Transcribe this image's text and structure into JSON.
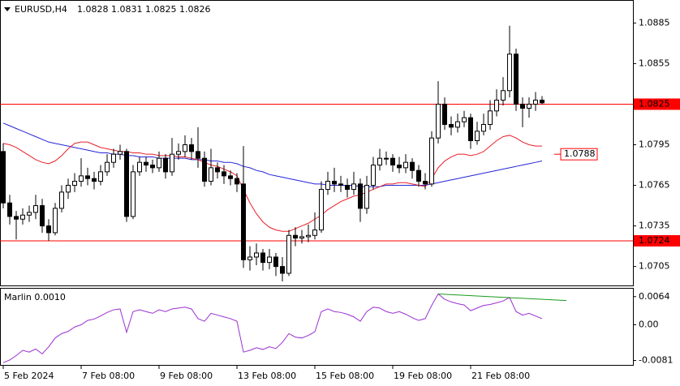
{
  "chart_data": [
    {
      "type": "candlestick",
      "title": "EURUSD,H4",
      "categories": [
        "5 Feb 2024",
        null,
        null,
        null,
        null,
        null,
        null,
        null,
        null,
        null,
        null,
        null,
        "7 Feb 08:00",
        null,
        null,
        null,
        null,
        null,
        null,
        null,
        null,
        null,
        null,
        null,
        "9 Feb 08:00",
        null,
        null,
        null,
        null,
        null,
        null,
        null,
        null,
        null,
        null,
        null,
        "13 Feb 08:00",
        null,
        null,
        null,
        null,
        null,
        null,
        null,
        null,
        null,
        null,
        null,
        "15 Feb 08:00",
        null,
        null,
        null,
        null,
        null,
        null,
        null,
        null,
        null,
        null,
        null,
        "19 Feb 08:00",
        null,
        null,
        null,
        null,
        null,
        null,
        null,
        null,
        null,
        null,
        null,
        "21 Feb 08:00",
        null,
        null,
        null,
        null,
        null,
        null,
        null,
        null,
        null,
        null,
        null
      ],
      "open": [
        1.079,
        1.0752,
        1.0742,
        1.074,
        1.0743,
        1.0745,
        1.075,
        1.0735,
        1.073,
        1.0748,
        1.076,
        1.0765,
        1.0768,
        1.0772,
        1.077,
        1.0768,
        1.0775,
        1.0782,
        1.0788,
        1.079,
        1.0742,
        1.0775,
        1.0782,
        1.078,
        1.0778,
        1.0785,
        1.0775,
        1.0788,
        1.079,
        1.0795,
        1.079,
        1.0785,
        1.0768,
        1.0778,
        1.0775,
        1.0772,
        1.077,
        1.0766,
        1.071,
        1.0712,
        1.0715,
        1.0708,
        1.0712,
        1.0705,
        1.07,
        1.0728,
        1.0726,
        1.0727,
        1.0728,
        1.0732,
        1.0762,
        1.0768,
        1.0766,
        1.0765,
        1.0762,
        1.0766,
        1.0748,
        1.0765,
        1.078,
        1.0785,
        1.0785,
        1.078,
        1.0778,
        1.0782,
        1.0776,
        1.0768,
        1.0766,
        1.08,
        1.0825,
        1.081,
        1.0808,
        1.0812,
        1.0815,
        1.0798,
        1.0805,
        1.081,
        1.082,
        1.0828,
        1.0835,
        1.0862,
        1.0825,
        1.0822,
        1.0825,
        1.0828
      ],
      "high": [
        1.0796,
        1.0758,
        1.0746,
        1.0748,
        1.075,
        1.0758,
        1.0755,
        1.074,
        1.0752,
        1.0765,
        1.077,
        1.0774,
        1.0785,
        1.0778,
        1.0775,
        1.078,
        1.0788,
        1.0792,
        1.0795,
        1.0792,
        1.078,
        1.0786,
        1.0786,
        1.0784,
        1.079,
        1.0788,
        1.08,
        1.0796,
        1.0802,
        1.08,
        1.0808,
        1.079,
        1.0792,
        1.0782,
        1.078,
        1.0776,
        1.0774,
        1.0794,
        1.072,
        1.0722,
        1.0718,
        1.0718,
        1.0715,
        1.0712,
        1.0732,
        1.0734,
        1.0732,
        1.0736,
        1.0745,
        1.0768,
        1.0775,
        1.0778,
        1.0772,
        1.077,
        1.0775,
        1.077,
        1.0772,
        1.0786,
        1.0792,
        1.079,
        1.0788,
        1.0786,
        1.0788,
        1.0785,
        1.078,
        1.0774,
        1.0805,
        1.0842,
        1.083,
        1.0816,
        1.0818,
        1.082,
        1.0818,
        1.0812,
        1.0818,
        1.0828,
        1.0836,
        1.0845,
        1.0883,
        1.0866,
        1.083,
        1.083,
        1.0834,
        1.0831
      ],
      "low": [
        1.0748,
        1.0736,
        1.0725,
        1.0736,
        1.0738,
        1.074,
        1.073,
        1.0724,
        1.0728,
        1.0745,
        1.0755,
        1.076,
        1.0764,
        1.0765,
        1.0762,
        1.0765,
        1.0772,
        1.0778,
        1.0784,
        1.0738,
        1.074,
        1.0772,
        1.0775,
        1.0774,
        1.0775,
        1.077,
        1.0772,
        1.0784,
        1.0786,
        1.0784,
        1.0778,
        1.0764,
        1.0765,
        1.077,
        1.0766,
        1.0765,
        1.076,
        1.0704,
        1.0702,
        1.0706,
        1.0702,
        1.0703,
        1.0698,
        1.0694,
        1.0698,
        1.072,
        1.0722,
        1.0723,
        1.0725,
        1.073,
        1.0758,
        1.076,
        1.076,
        1.0756,
        1.0758,
        1.0738,
        1.0744,
        1.0762,
        1.0776,
        1.078,
        1.0775,
        1.0774,
        1.0774,
        1.077,
        1.0764,
        1.0762,
        1.0764,
        1.0796,
        1.0806,
        1.0802,
        1.0804,
        1.0808,
        1.0792,
        1.0795,
        1.0802,
        1.0806,
        1.0816,
        1.0824,
        1.083,
        1.082,
        1.0808,
        1.0815,
        1.082,
        1.0825
      ],
      "close": [
        1.0752,
        1.0742,
        1.074,
        1.0743,
        1.0745,
        1.075,
        1.0735,
        1.073,
        1.0748,
        1.076,
        1.0765,
        1.0768,
        1.0772,
        1.077,
        1.0768,
        1.0775,
        1.0782,
        1.0788,
        1.079,
        1.0742,
        1.0775,
        1.0782,
        1.078,
        1.0778,
        1.0785,
        1.0775,
        1.0788,
        1.079,
        1.0795,
        1.079,
        1.0785,
        1.0768,
        1.0778,
        1.0775,
        1.0772,
        1.077,
        1.0766,
        1.071,
        1.0712,
        1.0715,
        1.0708,
        1.0712,
        1.0705,
        1.07,
        1.0728,
        1.0726,
        1.0727,
        1.0728,
        1.0732,
        1.0762,
        1.0768,
        1.0766,
        1.0765,
        1.0762,
        1.0766,
        1.0748,
        1.0765,
        1.078,
        1.0785,
        1.0785,
        1.078,
        1.0778,
        1.0782,
        1.0776,
        1.0768,
        1.0766,
        1.08,
        1.0825,
        1.081,
        1.0808,
        1.0812,
        1.0815,
        1.0798,
        1.0805,
        1.081,
        1.082,
        1.0828,
        1.0835,
        1.0862,
        1.0825,
        1.0822,
        1.0825,
        1.0828,
        1.0826
      ],
      "series": [
        {
          "color": "#2424d8",
          "values": [
            1.0811,
            1.0809,
            1.0807,
            1.0805,
            1.0803,
            1.0801,
            1.0799,
            1.0797,
            1.0796,
            1.0795,
            1.0794,
            1.0793,
            1.0792,
            1.0791,
            1.079,
            1.0789,
            1.0789,
            1.0788,
            1.0788,
            1.0787,
            1.0787,
            1.0786,
            1.0786,
            1.0786,
            1.0785,
            1.0785,
            1.0785,
            1.0785,
            1.0785,
            1.0784,
            1.0784,
            1.0784,
            1.0783,
            1.0783,
            1.0782,
            1.0782,
            1.0781,
            1.0779,
            1.0778,
            1.0776,
            1.0775,
            1.0773,
            1.0772,
            1.0771,
            1.077,
            1.0769,
            1.0768,
            1.0767,
            1.0766,
            1.0766,
            1.0765,
            1.0765,
            1.0765,
            1.0765,
            1.0765,
            1.0764,
            1.0764,
            1.0764,
            1.0764,
            1.0765,
            1.0765,
            1.0765,
            1.0765,
            1.0765,
            1.0765,
            1.0765,
            1.0766,
            1.0767,
            1.0768,
            1.0769,
            1.077,
            1.0771,
            1.0772,
            1.0773,
            1.0774,
            1.0775,
            1.0776,
            1.0777,
            1.0778,
            1.0779,
            1.078,
            1.0781,
            1.0782,
            1.0783
          ]
        },
        {
          "color": "#e8202a",
          "values": [
            1.0796,
            1.0795,
            1.0793,
            1.079,
            1.0787,
            1.0784,
            1.0782,
            1.0781,
            1.0783,
            1.0787,
            1.0792,
            1.0796,
            1.0797,
            1.0797,
            1.0795,
            1.0793,
            1.0792,
            1.0791,
            1.079,
            1.079,
            1.0789,
            1.0789,
            1.0788,
            1.0788,
            1.0787,
            1.0787,
            1.0787,
            1.0786,
            1.0786,
            1.0785,
            1.0784,
            1.0782,
            1.078,
            1.0779,
            1.0777,
            1.0775,
            1.0772,
            1.0762,
            1.0752,
            1.0744,
            1.0738,
            1.0734,
            1.0732,
            1.0731,
            1.0731,
            1.0733,
            1.0735,
            1.0737,
            1.074,
            1.0743,
            1.0747,
            1.075,
            1.0753,
            1.0755,
            1.0757,
            1.0758,
            1.076,
            1.0762,
            1.0764,
            1.0766,
            1.0766,
            1.0767,
            1.0767,
            1.0766,
            1.0765,
            1.0764,
            1.077,
            1.0778,
            1.0783,
            1.0786,
            1.0788,
            1.0788,
            1.0787,
            1.0788,
            1.079,
            1.0794,
            1.0798,
            1.0801,
            1.0802,
            1.08,
            1.0797,
            1.0795,
            1.0794,
            1.0794
          ]
        }
      ],
      "hlines": [
        1.0825,
        1.0724
      ],
      "hline_color": "#ff0000",
      "price_label": 1.0788,
      "ylim": [
        1.0691,
        1.0902
      ],
      "yticks": [
        1.0885,
        1.0855,
        1.0795,
        1.0765,
        1.0735,
        1.0705
      ]
    },
    {
      "type": "line",
      "title": "Marlin 0.0010",
      "series": [
        {
          "color": "#9b30d0",
          "values": [
            -0.0086,
            -0.008,
            -0.007,
            -0.0058,
            -0.0062,
            -0.0055,
            -0.0066,
            -0.005,
            -0.003,
            -0.002,
            -0.0015,
            -0.0005,
            0.0,
            0.001,
            0.0013,
            0.002,
            0.0028,
            0.0034,
            0.0036,
            -0.0017,
            0.003,
            0.0034,
            0.003,
            0.0026,
            0.0034,
            0.003,
            0.0036,
            0.0038,
            0.004,
            0.0036,
            0.0014,
            0.0008,
            0.0026,
            0.0022,
            0.0018,
            0.0014,
            0.0008,
            -0.0062,
            -0.0058,
            -0.0052,
            -0.0056,
            -0.005,
            -0.0054,
            -0.004,
            -0.002,
            -0.0028,
            -0.003,
            -0.0024,
            -0.0016,
            0.003,
            0.0036,
            0.003,
            0.0028,
            0.0024,
            0.0018,
            0.0008,
            0.003,
            0.004,
            0.0038,
            0.003,
            0.0026,
            0.003,
            0.0024,
            0.0016,
            0.001,
            0.0014,
            0.0044,
            0.007,
            0.0058,
            0.0052,
            0.0048,
            0.0045,
            0.0032,
            0.0038,
            0.0044,
            0.0046,
            0.005,
            0.0054,
            0.0062,
            0.003,
            0.0022,
            0.0026,
            0.002,
            0.0014
          ]
        }
      ],
      "trend_line": {
        "color": "#1a9a1a",
        "x": [
          67,
          86.75
        ],
        "y": [
          0.007,
          0.0055
        ]
      },
      "ylim": [
        -0.0093,
        0.0082
      ],
      "yticks": [
        0.0064,
        {
          "value": 0,
          "label": "0.00"
        },
        -0.0081
      ]
    }
  ]
}
